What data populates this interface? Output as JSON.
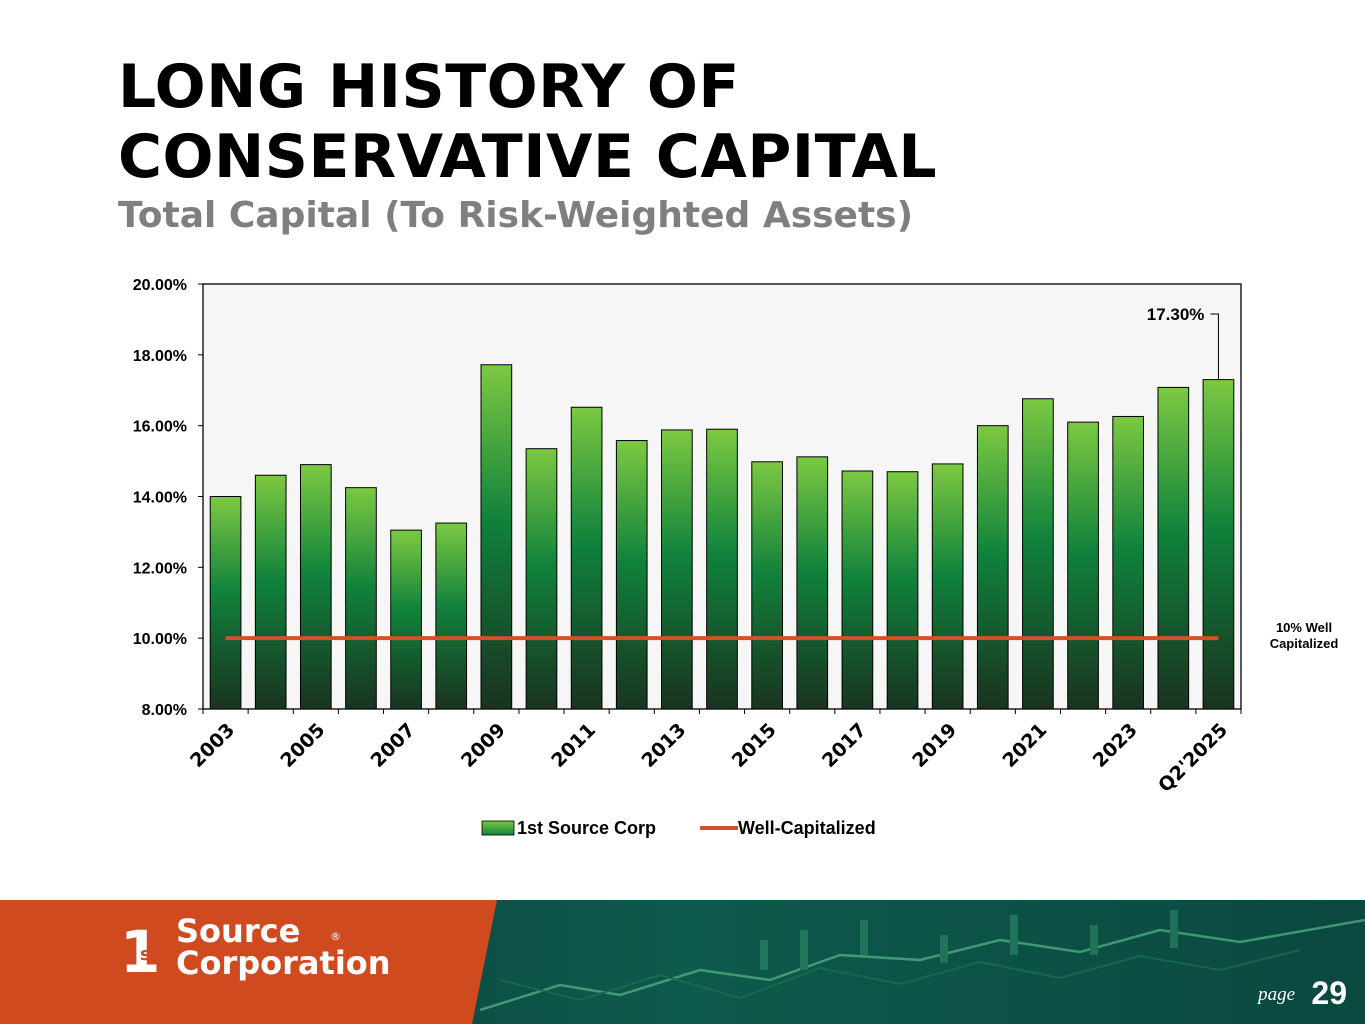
{
  "header": {
    "title_line1": "LONG HISTORY OF",
    "title_line2": "CONSERVATIVE CAPITAL",
    "subtitle": "Total Capital (To Risk-Weighted Assets)"
  },
  "chart_data": {
    "type": "bar",
    "title": "Total Capital (To Risk-Weighted Assets)",
    "categories": [
      "2003",
      "2004",
      "2005",
      "2006",
      "2007",
      "2008",
      "2009",
      "2010",
      "2011",
      "2012",
      "2013",
      "2014",
      "2015",
      "2016",
      "2017",
      "2018",
      "2019",
      "2020",
      "2021",
      "2022",
      "2023",
      "2024",
      "Q2'2025"
    ],
    "tick_labels": [
      "2003",
      "2005",
      "2007",
      "2009",
      "2011",
      "2013",
      "2015",
      "2017",
      "2019",
      "2021",
      "2023",
      "Q2'2025"
    ],
    "series": [
      {
        "name": "1st Source Corp",
        "type": "bar",
        "values": [
          14.0,
          14.6,
          14.9,
          14.25,
          13.05,
          13.25,
          17.72,
          15.35,
          16.52,
          15.58,
          15.88,
          15.9,
          14.98,
          15.12,
          14.72,
          14.7,
          14.92,
          16.0,
          16.76,
          16.1,
          16.26,
          17.08,
          17.3
        ]
      },
      {
        "name": "Well-Capitalized",
        "type": "line",
        "value": 10.0
      }
    ],
    "ylim": [
      8,
      20
    ],
    "yticks": [
      "8.00%",
      "10.00%",
      "12.00%",
      "14.00%",
      "16.00%",
      "18.00%",
      "20.00%"
    ],
    "callout_label": "17.30%",
    "reference_label_line1": "10% Well",
    "reference_label_line2": "Capitalized",
    "legend_position": "bottom",
    "xlabel": "",
    "ylabel": ""
  },
  "colors": {
    "bar_top": "#7cc942",
    "bar_mid": "#10823c",
    "bar_bottom": "#1a3320",
    "line": "#d4502a",
    "plot_bg": "#f6f6f6",
    "footer_orange": "#d04a20",
    "footer_teal": "#0c4a44"
  },
  "footer": {
    "logo_prefix": "1",
    "logo_superscript": "st",
    "logo_line1": "Source",
    "logo_line2": "Corporation",
    "logo_mark": "®",
    "page_label": "page",
    "page_number": "29"
  }
}
